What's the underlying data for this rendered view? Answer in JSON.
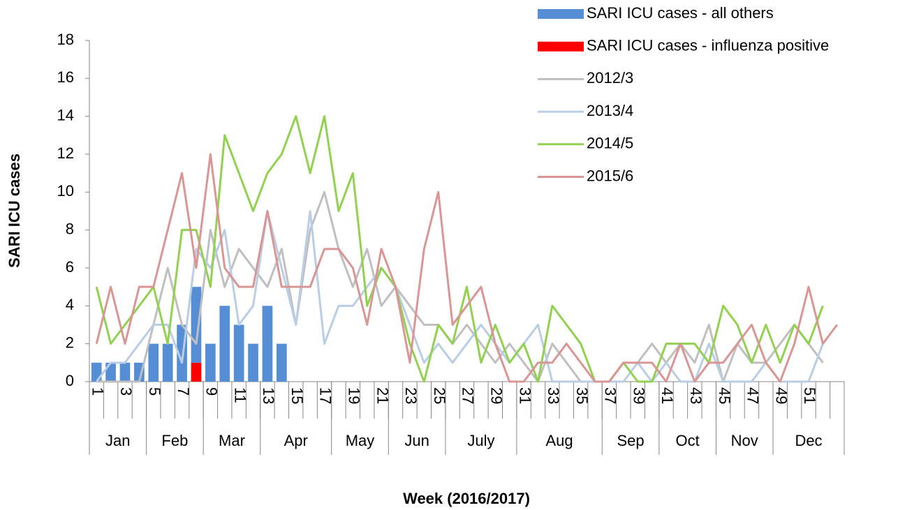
{
  "chart_data": {
    "type": "combo",
    "y_label": "SARI ICU cases",
    "x_label": "Week (2016/2017)",
    "categories": [
      1,
      null,
      3,
      null,
      5,
      null,
      7,
      null,
      9,
      null,
      11,
      null,
      13,
      null,
      15,
      null,
      17,
      null,
      19,
      null,
      21,
      null,
      23,
      null,
      25,
      null,
      27,
      null,
      29,
      null,
      31,
      null,
      33,
      null,
      35,
      null,
      37,
      null,
      39,
      null,
      41,
      null,
      43,
      null,
      45,
      null,
      47,
      null,
      49,
      null,
      51,
      null,
      null
    ],
    "month_groups": [
      {
        "label": "Jan",
        "weeks": 4
      },
      {
        "label": "Feb",
        "weeks": 4
      },
      {
        "label": "Mar",
        "weeks": 4
      },
      {
        "label": "Apr",
        "weeks": 5
      },
      {
        "label": "May",
        "weeks": 4
      },
      {
        "label": "Jun",
        "weeks": 4
      },
      {
        "label": "July",
        "weeks": 5
      },
      {
        "label": "Aug",
        "weeks": 6
      },
      {
        "label": "Sep",
        "weeks": 4
      },
      {
        "label": "Oct",
        "weeks": 4
      },
      {
        "label": "Nov",
        "weeks": 4
      },
      {
        "label": "Dec",
        "weeks": 5
      }
    ],
    "ylim": [
      0,
      18
    ],
    "yticks": [
      0,
      2,
      4,
      6,
      8,
      10,
      12,
      14,
      16,
      18
    ],
    "legend": "top-right",
    "series": [
      {
        "name": "SARI ICU cases - influenza positive",
        "type": "bar",
        "stack": "cases",
        "color": "#ff0000",
        "values": [
          0,
          0,
          0,
          0,
          0,
          0,
          0,
          1,
          0,
          0,
          0,
          0,
          0,
          0,
          null,
          null,
          null,
          null,
          null,
          null,
          null,
          null,
          null,
          null,
          null,
          null,
          null,
          null,
          null,
          null,
          null,
          null,
          null,
          null,
          null,
          null,
          null,
          null,
          null,
          null,
          null,
          null,
          null,
          null,
          null,
          null,
          null,
          null,
          null,
          null,
          null,
          null,
          null
        ]
      },
      {
        "name": "SARI ICU cases - all others",
        "type": "bar",
        "stack": "cases",
        "color": "#558ed5",
        "values": [
          1,
          1,
          1,
          1,
          2,
          2,
          3,
          4,
          2,
          4,
          3,
          2,
          4,
          2,
          null,
          null,
          null,
          null,
          null,
          null,
          null,
          null,
          null,
          null,
          null,
          null,
          null,
          null,
          null,
          null,
          null,
          null,
          null,
          null,
          null,
          null,
          null,
          null,
          null,
          null,
          null,
          null,
          null,
          null,
          null,
          null,
          null,
          null,
          null,
          null,
          null,
          null,
          null
        ]
      },
      {
        "name": "2012/3",
        "type": "line",
        "color": "#bfbfbf",
        "values": [
          0,
          0,
          0,
          0,
          3,
          6,
          3,
          2,
          8,
          5,
          7,
          6,
          5,
          7,
          3,
          8,
          10,
          7,
          5,
          7,
          4,
          5,
          4,
          3,
          3,
          2,
          3,
          2,
          1,
          2,
          1,
          0,
          2,
          1,
          0,
          0,
          0,
          1,
          1,
          2,
          1,
          2,
          1,
          3,
          0,
          2,
          1,
          1,
          2,
          3,
          2,
          1,
          null
        ]
      },
      {
        "name": "2013/4",
        "type": "line",
        "color": "#b9cde5",
        "values": [
          0,
          1,
          1,
          2,
          3,
          3,
          1,
          7,
          6,
          8,
          3,
          4,
          9,
          6,
          3,
          9,
          2,
          4,
          4,
          5,
          6,
          5,
          3,
          1,
          2,
          1,
          2,
          3,
          2,
          1,
          2,
          3,
          0,
          0,
          0,
          0,
          0,
          0,
          1,
          0,
          1,
          0,
          0,
          2,
          0,
          0,
          0,
          1,
          0,
          0,
          0,
          2,
          null
        ]
      },
      {
        "name": "2014/5",
        "type": "line",
        "color": "#92d050",
        "values": [
          5,
          2,
          3,
          4,
          5,
          2,
          8,
          8,
          5,
          13,
          11,
          9,
          11,
          12,
          14,
          11,
          14,
          9,
          11,
          4,
          6,
          5,
          2,
          0,
          3,
          2,
          5,
          1,
          3,
          1,
          2,
          0,
          4,
          3,
          2,
          0,
          0,
          1,
          0,
          0,
          2,
          2,
          2,
          1,
          4,
          3,
          1,
          3,
          1,
          3,
          2,
          4,
          null
        ]
      },
      {
        "name": "2015/6",
        "type": "line",
        "color": "#d99694",
        "values": [
          2,
          5,
          2,
          5,
          5,
          8,
          11,
          6,
          12,
          6,
          5,
          5,
          9,
          5,
          5,
          5,
          7,
          7,
          6,
          3,
          7,
          5,
          1,
          7,
          10,
          3,
          4,
          5,
          2,
          0,
          0,
          1,
          1,
          2,
          1,
          0,
          0,
          1,
          1,
          1,
          0,
          2,
          0,
          1,
          1,
          2,
          3,
          1,
          0,
          2,
          5,
          2,
          3
        ]
      }
    ]
  }
}
